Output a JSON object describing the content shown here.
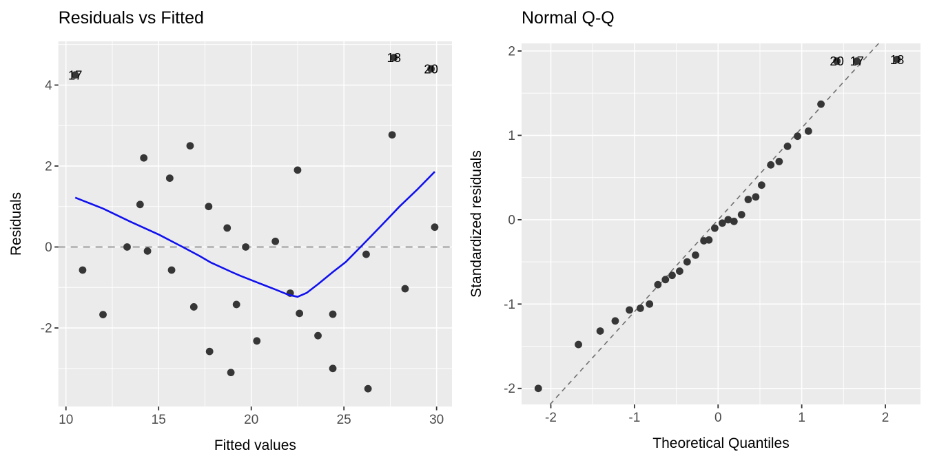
{
  "figure": {
    "background": "#FFFFFF"
  },
  "chart_data": [
    {
      "type": "scatter",
      "title": "Residuals vs Fitted",
      "xlabel": "Fitted values",
      "ylabel": "Residuals",
      "x_ticks": [
        10,
        15,
        20,
        25,
        30
      ],
      "y_ticks": [
        -2,
        0,
        2,
        4
      ],
      "xlim": [
        9.59,
        30.83
      ],
      "ylim": [
        -3.94,
        5.08
      ],
      "grid": "major+minor",
      "legend": "none",
      "colors": {
        "panel": "#EBEBEB",
        "grid": "#FFFFFF",
        "point": "#363636",
        "smooth": "#1010EE",
        "ref": "#7A7A7A",
        "tick_text": "#4D4D4D",
        "text": "#000000"
      },
      "points": [
        [
          16.7,
          2.5
        ],
        [
          14.2,
          2.2
        ],
        [
          15.6,
          1.7
        ],
        [
          14.0,
          1.05
        ],
        [
          17.7,
          1.0
        ],
        [
          18.7,
          0.47
        ],
        [
          13.3,
          0.0
        ],
        [
          14.4,
          -0.1
        ],
        [
          19.7,
          0.0
        ],
        [
          27.6,
          2.77
        ],
        [
          22.5,
          1.9
        ],
        [
          21.3,
          0.14
        ],
        [
          26.2,
          -0.18
        ],
        [
          29.9,
          0.49
        ],
        [
          10.9,
          -0.57
        ],
        [
          15.7,
          -0.57
        ],
        [
          12.0,
          -1.67
        ],
        [
          16.9,
          -1.48
        ],
        [
          19.2,
          -1.42
        ],
        [
          17.75,
          -2.58
        ],
        [
          18.9,
          -3.1
        ],
        [
          22.1,
          -1.14
        ],
        [
          22.6,
          -1.64
        ],
        [
          24.4,
          -1.66
        ],
        [
          23.6,
          -2.19
        ],
        [
          20.3,
          -2.32
        ],
        [
          24.4,
          -3.0
        ],
        [
          26.3,
          -3.5
        ],
        [
          28.3,
          -1.03
        ]
      ],
      "labeled_points": [
        {
          "label": "17",
          "x": 10.5,
          "y": 4.25
        },
        {
          "label": "18",
          "x": 27.7,
          "y": 4.68
        },
        {
          "label": "20",
          "x": 29.7,
          "y": 4.4
        }
      ],
      "smooth_line": [
        [
          10.5,
          1.22
        ],
        [
          12.0,
          0.95
        ],
        [
          13.5,
          0.62
        ],
        [
          15.0,
          0.31
        ],
        [
          16.3,
          0.0
        ],
        [
          17.2,
          -0.22
        ],
        [
          17.8,
          -0.38
        ],
        [
          19.0,
          -0.63
        ],
        [
          19.4,
          -0.71
        ],
        [
          20.4,
          -0.89
        ],
        [
          21.3,
          -1.05
        ],
        [
          22.0,
          -1.18
        ],
        [
          22.5,
          -1.23
        ],
        [
          23.0,
          -1.13
        ],
        [
          23.6,
          -0.92
        ],
        [
          24.4,
          -0.62
        ],
        [
          25.1,
          -0.37
        ],
        [
          26.0,
          0.05
        ],
        [
          27.0,
          0.52
        ],
        [
          28.0,
          1.0
        ],
        [
          29.0,
          1.44
        ],
        [
          29.9,
          1.86
        ]
      ],
      "ref_line": [
        [
          9.59,
          0
        ],
        [
          30.83,
          0
        ]
      ],
      "ref_dash": [
        10,
        8
      ]
    },
    {
      "type": "scatter",
      "title": "Normal Q-Q",
      "xlabel": "Theoretical Quantiles",
      "ylabel": "Standardized residuals",
      "x_ticks": [
        -2,
        -1,
        0,
        1,
        2
      ],
      "y_ticks": [
        -2,
        -1,
        0,
        1,
        2
      ],
      "xlim": [
        -2.35,
        2.42
      ],
      "ylim": [
        -2.19,
        2.09
      ],
      "grid": "major+minor",
      "legend": "none",
      "colors": {
        "panel": "#EBEBEB",
        "grid": "#FFFFFF",
        "point": "#363636",
        "smooth": "#1010EE",
        "ref": "#6F6F6F",
        "tick_text": "#4D4D4D",
        "text": "#000000"
      },
      "points": [
        [
          -2.15,
          -2.0
        ],
        [
          -1.67,
          -1.48
        ],
        [
          -1.41,
          -1.32
        ],
        [
          -1.23,
          -1.2
        ],
        [
          -1.06,
          -1.07
        ],
        [
          -0.93,
          -1.05
        ],
        [
          -0.82,
          -1.0
        ],
        [
          -0.72,
          -0.77
        ],
        [
          -0.63,
          -0.71
        ],
        [
          -0.55,
          -0.66
        ],
        [
          -0.46,
          -0.61
        ],
        [
          -0.37,
          -0.5
        ],
        [
          -0.27,
          -0.42
        ],
        [
          -0.17,
          -0.25
        ],
        [
          -0.11,
          -0.24
        ],
        [
          -0.04,
          -0.1
        ],
        [
          0.05,
          -0.04
        ],
        [
          0.12,
          0.0
        ],
        [
          0.19,
          -0.02
        ],
        [
          0.28,
          0.06
        ],
        [
          0.36,
          0.24
        ],
        [
          0.45,
          0.27
        ],
        [
          0.52,
          0.41
        ],
        [
          0.63,
          0.65
        ],
        [
          0.73,
          0.69
        ],
        [
          0.83,
          0.87
        ],
        [
          0.95,
          0.99
        ],
        [
          1.08,
          1.05
        ],
        [
          1.23,
          1.37
        ]
      ],
      "labeled_points": [
        {
          "label": "20",
          "x": 1.42,
          "y": 1.88
        },
        {
          "label": "17",
          "x": 1.66,
          "y": 1.88
        },
        {
          "label": "18",
          "x": 2.14,
          "y": 1.9
        }
      ],
      "smooth_line": null,
      "ref_line": [
        [
          -2.01,
          -2.19
        ],
        [
          1.92,
          2.09
        ]
      ],
      "ref_dash": [
        7,
        6
      ]
    }
  ]
}
